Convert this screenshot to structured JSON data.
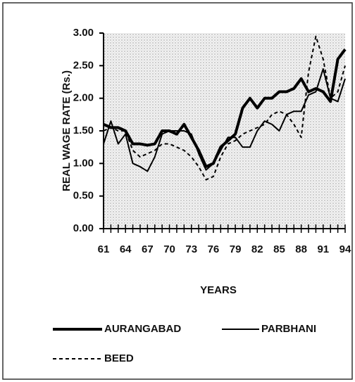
{
  "chart_data": {
    "type": "line",
    "x_label": "YEARS",
    "y_label": "REAL WAGE RATE (Rs.)",
    "x": [
      61,
      62,
      63,
      64,
      65,
      66,
      67,
      68,
      69,
      70,
      71,
      72,
      73,
      74,
      75,
      76,
      77,
      78,
      79,
      80,
      81,
      82,
      83,
      84,
      85,
      86,
      87,
      88,
      89,
      90,
      91,
      92,
      93,
      94
    ],
    "xlim": [
      61,
      94
    ],
    "xticks": [
      61,
      64,
      67,
      70,
      73,
      76,
      79,
      82,
      85,
      88,
      91,
      94
    ],
    "ylim": [
      0,
      3
    ],
    "yticks": [
      {
        "value": 0,
        "label": "0.00"
      },
      {
        "value": 0.5,
        "label": "0.50"
      },
      {
        "value": 1,
        "label": "1.00"
      },
      {
        "value": 1.5,
        "label": "1.50"
      },
      {
        "value": 2,
        "label": "2.00"
      },
      {
        "value": 2.5,
        "label": "2.50"
      },
      {
        "value": 3,
        "label": "3.00"
      }
    ],
    "series": [
      {
        "name": "AURANGABAD",
        "color": "#000000",
        "width": 4,
        "dashed": false,
        "values": [
          1.6,
          1.55,
          1.55,
          1.5,
          1.3,
          1.3,
          1.28,
          1.3,
          1.5,
          1.5,
          1.45,
          1.6,
          1.4,
          1.2,
          0.95,
          1.0,
          1.25,
          1.35,
          1.45,
          1.85,
          2.0,
          1.85,
          2.0,
          2.0,
          2.1,
          2.1,
          2.15,
          2.3,
          2.1,
          2.15,
          2.1,
          1.95,
          2.6,
          2.75
        ]
      },
      {
        "name": "PARBHANI",
        "color": "#000000",
        "width": 2,
        "dashed": false,
        "values": [
          1.3,
          1.65,
          1.3,
          1.45,
          1.0,
          0.95,
          0.88,
          1.1,
          1.45,
          1.5,
          1.5,
          1.5,
          1.45,
          1.15,
          0.9,
          1.0,
          1.2,
          1.4,
          1.4,
          1.25,
          1.25,
          1.5,
          1.65,
          1.6,
          1.5,
          1.75,
          1.8,
          1.8,
          2.05,
          2.1,
          2.45,
          2.0,
          1.95,
          2.3
        ]
      },
      {
        "name": "BEED",
        "color": "#000000",
        "width": 2,
        "dashed": true,
        "values": [
          1.5,
          1.55,
          1.5,
          1.5,
          1.2,
          1.1,
          1.15,
          1.2,
          1.3,
          1.3,
          1.25,
          1.2,
          1.1,
          0.95,
          0.75,
          0.8,
          1.1,
          1.3,
          1.35,
          1.45,
          1.5,
          1.55,
          1.6,
          1.75,
          1.8,
          1.75,
          1.6,
          1.4,
          2.4,
          2.95,
          2.6,
          2.0,
          2.1,
          2.5
        ]
      }
    ]
  }
}
